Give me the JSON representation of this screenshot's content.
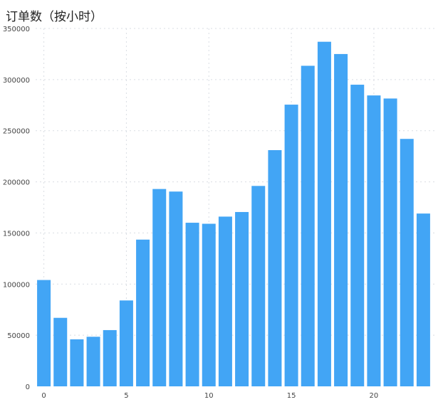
{
  "chart_data": {
    "type": "bar",
    "title": "订单数（按小时）",
    "xlabel": "",
    "ylabel": "",
    "x": [
      0,
      1,
      2,
      3,
      4,
      5,
      6,
      7,
      8,
      9,
      10,
      11,
      12,
      13,
      14,
      15,
      16,
      17,
      18,
      19,
      20,
      21,
      22,
      23
    ],
    "values": [
      104000,
      67000,
      46000,
      48500,
      55000,
      84000,
      143500,
      193000,
      190500,
      160000,
      159000,
      166000,
      170500,
      196000,
      231000,
      275500,
      313500,
      337000,
      325000,
      295000,
      284500,
      281500,
      242000,
      169000
    ],
    "ylim": [
      0,
      350000
    ],
    "yticks": [
      "0",
      "50000",
      "100000",
      "150000",
      "200000",
      "250000",
      "300000",
      "350000"
    ],
    "xticks": [
      "0",
      "5",
      "10",
      "15",
      "20"
    ],
    "xtick_values": [
      0,
      5,
      10,
      15,
      20
    ],
    "grid": true,
    "bar_color": "#42a5f5",
    "grid_color": "#d9dde3"
  }
}
